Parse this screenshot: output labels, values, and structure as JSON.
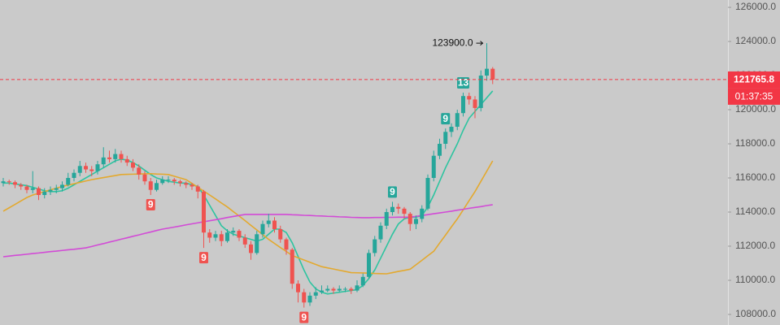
{
  "chart_data": {
    "type": "candlestick",
    "up_color": "#26a69a",
    "down_color": "#ef5350",
    "ylim": [
      107380,
      126430
    ],
    "yticks": [
      {
        "value": 108000,
        "label": "108000.0"
      },
      {
        "value": 110000,
        "label": "110000.0"
      },
      {
        "value": 112000,
        "label": "112000.0"
      },
      {
        "value": 114000,
        "label": "114000.0"
      },
      {
        "value": 116000,
        "label": "116000.0"
      },
      {
        "value": 118000,
        "label": "118000.0"
      },
      {
        "value": 120000,
        "label": "120000.0"
      },
      {
        "value": 122000,
        "label": "122000.0"
      },
      {
        "value": 124000,
        "label": "124000.0"
      },
      {
        "value": 126000,
        "label": "126000.0"
      }
    ],
    "candles": [
      [
        115700,
        116000,
        115500,
        115800
      ],
      [
        115800,
        115900,
        115600,
        115750
      ],
      [
        115750,
        115850,
        115400,
        115600
      ],
      [
        115600,
        115700,
        115300,
        115500
      ],
      [
        115500,
        115600,
        115100,
        115300
      ],
      [
        115300,
        116400,
        115100,
        115400
      ],
      [
        115400,
        115500,
        114700,
        115000
      ],
      [
        115000,
        115400,
        114800,
        115200
      ],
      [
        115200,
        115500,
        115000,
        115300
      ],
      [
        115300,
        115600,
        115100,
        115400
      ],
      [
        115400,
        115800,
        115200,
        115600
      ],
      [
        115600,
        116300,
        115500,
        116000
      ],
      [
        116000,
        116500,
        115800,
        116300
      ],
      [
        116300,
        117000,
        116100,
        116700
      ],
      [
        116700,
        116900,
        116300,
        116500
      ],
      [
        116500,
        116700,
        116100,
        116400
      ],
      [
        116400,
        117000,
        116200,
        116800
      ],
      [
        116800,
        117800,
        116600,
        117200
      ],
      [
        117200,
        117600,
        116900,
        117100
      ],
      [
        117100,
        117700,
        116900,
        117400
      ],
      [
        117400,
        117600,
        116900,
        117100
      ],
      [
        117100,
        117300,
        116700,
        116900
      ],
      [
        116900,
        117100,
        116400,
        116600
      ],
      [
        116600,
        116800,
        115900,
        116200
      ],
      [
        116200,
        116400,
        115600,
        115800
      ],
      [
        115800,
        116000,
        115000,
        115300
      ],
      [
        115300,
        115900,
        115200,
        115700
      ],
      [
        115700,
        116100,
        115600,
        115900
      ],
      [
        115900,
        116100,
        115700,
        115900
      ],
      [
        115900,
        116000,
        115600,
        115800
      ],
      [
        115800,
        115900,
        115500,
        115700
      ],
      [
        115700,
        115800,
        115400,
        115600
      ],
      [
        115600,
        115700,
        115300,
        115500
      ],
      [
        115500,
        115600,
        114800,
        115200
      ],
      [
        115200,
        115300,
        111900,
        112800
      ],
      [
        112800,
        113000,
        112200,
        112500
      ],
      [
        112500,
        112900,
        112300,
        112700
      ],
      [
        112700,
        112900,
        112000,
        112300
      ],
      [
        112300,
        113000,
        112200,
        112800
      ],
      [
        112800,
        113100,
        112600,
        112900
      ],
      [
        112900,
        113000,
        112300,
        112500
      ],
      [
        112500,
        112700,
        111900,
        112100
      ],
      [
        112100,
        112300,
        111200,
        111600
      ],
      [
        111600,
        112900,
        111500,
        112700
      ],
      [
        112700,
        113500,
        112500,
        113300
      ],
      [
        113300,
        113900,
        113100,
        113500
      ],
      [
        113500,
        113700,
        112800,
        113000
      ],
      [
        113000,
        113200,
        112200,
        112400
      ],
      [
        112400,
        112500,
        111500,
        111800
      ],
      [
        111800,
        111900,
        109500,
        109800
      ],
      [
        109800,
        110000,
        108700,
        109300
      ],
      [
        109300,
        109500,
        108400,
        108700
      ],
      [
        108700,
        109300,
        108500,
        109100
      ],
      [
        109100,
        109600,
        108900,
        109300
      ],
      [
        109300,
        109700,
        109200,
        109400
      ],
      [
        109400,
        109700,
        109300,
        109500
      ],
      [
        109500,
        109600,
        109200,
        109400
      ],
      [
        109400,
        109700,
        109300,
        109500
      ],
      [
        109500,
        109600,
        109300,
        109500
      ],
      [
        109500,
        109600,
        109200,
        109400
      ],
      [
        109400,
        110000,
        109300,
        109700
      ],
      [
        109700,
        110400,
        109600,
        110200
      ],
      [
        110200,
        111800,
        110100,
        111600
      ],
      [
        111600,
        112600,
        111400,
        112400
      ],
      [
        112400,
        113400,
        112200,
        113200
      ],
      [
        113200,
        114200,
        113000,
        114000
      ],
      [
        114000,
        114600,
        113800,
        114300
      ],
      [
        114300,
        114500,
        113900,
        114200
      ],
      [
        114200,
        114300,
        113600,
        113900
      ],
      [
        113900,
        114000,
        112900,
        113300
      ],
      [
        113300,
        113800,
        113000,
        113600
      ],
      [
        113600,
        114400,
        113400,
        114200
      ],
      [
        114200,
        116200,
        114100,
        116000
      ],
      [
        116000,
        117600,
        115800,
        117300
      ],
      [
        117300,
        118300,
        117100,
        118000
      ],
      [
        118000,
        118900,
        117700,
        118700
      ],
      [
        118700,
        119200,
        118400,
        119000
      ],
      [
        119000,
        120000,
        118800,
        119800
      ],
      [
        119800,
        121000,
        119600,
        120800
      ],
      [
        120800,
        121000,
        120300,
        120600
      ],
      [
        120600,
        120800,
        119500,
        120100
      ],
      [
        120100,
        122300,
        119900,
        122000
      ],
      [
        122000,
        123900,
        121700,
        122400
      ],
      [
        122400,
        122500,
        121500,
        121765.8
      ]
    ],
    "series": [
      {
        "color": "#2ec4a0",
        "values": [
          115700,
          115700,
          115650,
          115600,
          115550,
          115450,
          115350,
          115250,
          115200,
          115200,
          115250,
          115400,
          115600,
          115800,
          116000,
          116200,
          116400,
          116600,
          116800,
          117000,
          117100,
          117050,
          116900,
          116700,
          116450,
          116200,
          116000,
          115900,
          115800,
          115750,
          115700,
          115700,
          115600,
          115500,
          115000,
          114400,
          113800,
          113200,
          112900,
          112700,
          112600,
          112500,
          112400,
          112300,
          112400,
          112700,
          113000,
          113000,
          112800,
          112200,
          111400,
          110600,
          109900,
          109500,
          109300,
          109200,
          109250,
          109300,
          109350,
          109400,
          109450,
          109700,
          110100,
          110600,
          111300,
          112000,
          112700,
          113300,
          113600,
          113700,
          113700,
          113800,
          114300,
          115000,
          115800,
          116600,
          117300,
          118000,
          118800,
          119500,
          119900,
          120300,
          120700,
          121100
        ]
      },
      {
        "color": "#e3a92f",
        "values": [
          114050,
          114250,
          114450,
          114650,
          114850,
          115000,
          115100,
          115200,
          115300,
          115400,
          115500,
          115580,
          115660,
          115740,
          115820,
          115900,
          115960,
          116020,
          116080,
          116140,
          116200,
          116210,
          116220,
          116230,
          116240,
          116250,
          116230,
          116220,
          116200,
          116100,
          116000,
          115900,
          115680,
          115450,
          115230,
          115000,
          114770,
          114530,
          114300,
          114030,
          113770,
          113500,
          113220,
          112950,
          112680,
          112400,
          112160,
          111920,
          111690,
          111450,
          111320,
          111190,
          111060,
          110930,
          110800,
          110730,
          110660,
          110590,
          110520,
          110450,
          110440,
          110430,
          110420,
          110400,
          110390,
          110380,
          110450,
          110520,
          110580,
          110650,
          110910,
          111170,
          111440,
          111700,
          112180,
          112650,
          113130,
          113600,
          114130,
          114670,
          115200,
          115800,
          116400,
          117000
        ]
      },
      {
        "color": "#d24bd6",
        "values": [
          111380,
          111420,
          111460,
          111490,
          111530,
          111570,
          111600,
          111640,
          111680,
          111710,
          111750,
          111790,
          111820,
          111860,
          111900,
          111980,
          112070,
          112150,
          112240,
          112320,
          112410,
          112490,
          112580,
          112660,
          112750,
          112830,
          112920,
          113000,
          113060,
          113120,
          113180,
          113250,
          113310,
          113370,
          113430,
          113490,
          113550,
          113610,
          113680,
          113740,
          113800,
          113860,
          113860,
          113860,
          113860,
          113860,
          113860,
          113860,
          113860,
          113840,
          113830,
          113810,
          113800,
          113780,
          113770,
          113750,
          113740,
          113720,
          113710,
          113690,
          113680,
          113670,
          113670,
          113680,
          113680,
          113690,
          113690,
          113700,
          113700,
          113700,
          113750,
          113800,
          113850,
          113900,
          113950,
          114000,
          114050,
          114110,
          114160,
          114220,
          114270,
          114320,
          114380,
          114430
        ]
      }
    ],
    "markers": [
      {
        "text": "9",
        "candle": 25,
        "position": "below",
        "color": "#ef5350"
      },
      {
        "text": "9",
        "candle": 34,
        "position": "below",
        "color": "#ef5350"
      },
      {
        "text": "9",
        "candle": 51,
        "position": "below",
        "color": "#ef5350"
      },
      {
        "text": "9",
        "candle": 66,
        "position": "above",
        "color": "#26a69a"
      },
      {
        "text": "9",
        "candle": 75,
        "position": "above",
        "color": "#26a69a"
      },
      {
        "text": "13",
        "candle": 78,
        "position": "above",
        "color": "#26a69a"
      }
    ],
    "high_label": {
      "value": 123900,
      "label": "123900.0",
      "candle": 82
    },
    "last_price": 121765.8,
    "last_price_color": "#f23645",
    "countdown": "01:37:35"
  }
}
